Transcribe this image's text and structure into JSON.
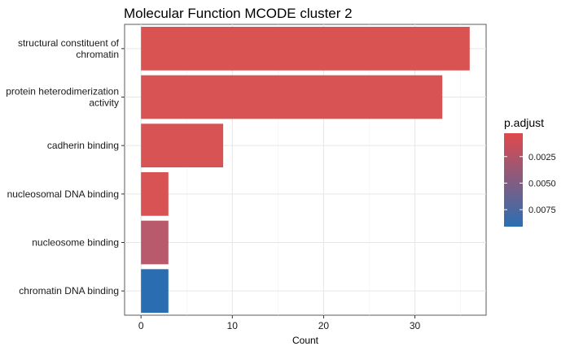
{
  "chart_data": {
    "type": "bar",
    "orientation": "horizontal",
    "title": "Molecular Function MCODE cluster 2",
    "xlabel": "Count",
    "ylabel": "",
    "xlim": [
      -1.8,
      37.8
    ],
    "x_ticks": [
      0,
      10,
      20,
      30
    ],
    "grid": true,
    "categories": [
      "structural constituent of\nchromatin",
      "protein heterodimerization\nactivity",
      "cadherin binding",
      "nucleosomal DNA binding",
      "nucleosome binding",
      "chromatin DNA binding"
    ],
    "values": [
      36,
      33,
      9,
      3,
      3,
      3
    ],
    "p_adjust": [
      0.0003,
      0.0004,
      0.0004,
      0.0005,
      0.0028,
      0.0091
    ],
    "bar_colors": [
      "#d95353",
      "#d85454",
      "#d85454",
      "#d85353",
      "#b85a6c",
      "#2b6db1"
    ],
    "legend": {
      "title": "p.adjust",
      "position": "right",
      "ticks": [
        0.0025,
        0.005,
        0.0075
      ],
      "tick_labels": [
        "0.0025",
        "0.0050",
        "0.0075"
      ],
      "range": [
        0.0003,
        0.0091
      ],
      "color_low": "#e0494c",
      "color_high": "#2b6fb3"
    }
  }
}
